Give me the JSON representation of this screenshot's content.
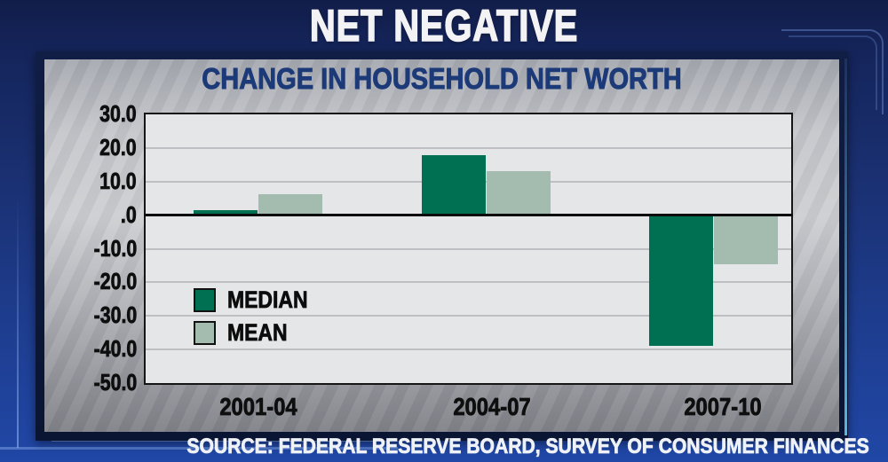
{
  "header": {
    "title": "NET NEGATIVE"
  },
  "footer": {
    "source": "SOURCE: FEDERAL RESERVE BOARD, SURVEY OF CONSUMER FINANCES"
  },
  "chart_data": {
    "type": "bar",
    "title": "CHANGE IN HOUSEHOLD NET WORTH",
    "categories": [
      "2001-04",
      "2004-07",
      "2007-10"
    ],
    "series": [
      {
        "name": "MEDIAN",
        "color": "#007052",
        "values": [
          1.5,
          17.9,
          -38.8
        ]
      },
      {
        "name": "MEAN",
        "color": "#a4bbb0",
        "values": [
          6.3,
          13.1,
          -14.7
        ]
      }
    ],
    "ylim": [
      -50,
      30
    ],
    "ytick_step": 10,
    "ytick_labels": [
      "30.0",
      "20.0",
      "10.0",
      ".0",
      "-10.0",
      "-20.0",
      "-30.0",
      "-40.0",
      "-50.0"
    ],
    "grid": "horizontal",
    "zero_line": true,
    "legend_position": "inside-lower-left"
  },
  "colors": {
    "background_top": "#111d49",
    "background_bottom": "#2047a6",
    "panel_border": "#0a1533",
    "panel_silver": "#c5c7cb",
    "plot_background": "#e5e6e8",
    "gridline": "#bdbfc3",
    "title_text": "#f3f3f5",
    "chart_title_text": "#1d3a78",
    "axis_text": "#0e0e0e",
    "cyan_edge": "#5fc8f5"
  }
}
